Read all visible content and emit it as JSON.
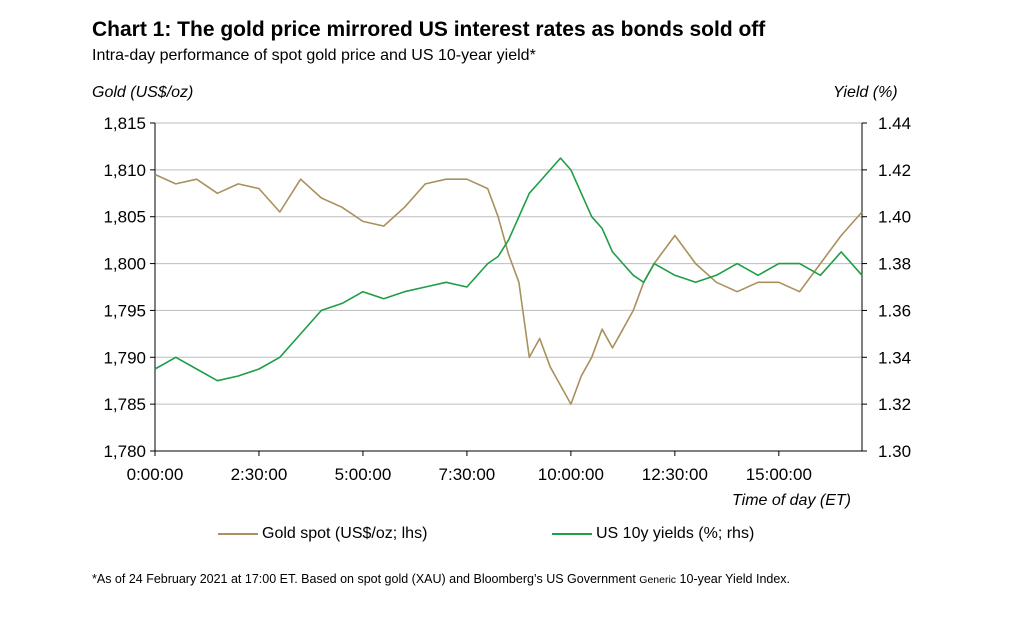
{
  "title": "Chart 1: The gold price mirrored US interest rates as bonds sold off",
  "subtitle": "Intra-day performance of spot gold price and US 10-year yield*",
  "footnote": {
    "part1": "*As of 24 February 2021 at 17:00 ET. Based on spot gold (XAU) and Bloomberg’s US Government ",
    "small": "Generic",
    "part2": " 10-year Yield Index."
  },
  "colors": {
    "gold": "#a8915c",
    "green": "#1e9e46",
    "grid": "#bdbdbd"
  },
  "chart_data": {
    "type": "line",
    "xlabel": "Time of day (ET)",
    "ylabel_left": "Gold (US$/oz)",
    "ylabel_right": "Yield (%)",
    "x_ticks": [
      "0:00:00",
      "2:30:00",
      "5:00:00",
      "7:30:00",
      "10:00:00",
      "12:30:00",
      "15:00:00"
    ],
    "x_range_hours": [
      0,
      17
    ],
    "ylim_left": [
      1780,
      1815
    ],
    "yticks_left": [
      "1,780",
      "1,785",
      "1,790",
      "1,795",
      "1,800",
      "1,805",
      "1,810",
      "1,815"
    ],
    "ylim_right": [
      1.3,
      1.44
    ],
    "yticks_right": [
      "1.30",
      "1.32",
      "1.34",
      "1.36",
      "1.38",
      "1.40",
      "1.42",
      "1.44"
    ],
    "grid": true,
    "legend_position": "bottom",
    "series": [
      {
        "name": "Gold spot (US$/oz; lhs)",
        "axis": "left",
        "x": [
          0,
          0.5,
          1,
          1.5,
          2,
          2.5,
          3,
          3.5,
          4,
          4.5,
          5,
          5.5,
          6,
          6.5,
          7,
          7.5,
          8,
          8.25,
          8.5,
          8.75,
          9,
          9.25,
          9.5,
          9.75,
          10,
          10.25,
          10.5,
          10.75,
          11,
          11.25,
          11.5,
          11.75,
          12,
          12.5,
          13,
          13.5,
          14,
          14.5,
          15,
          15.5,
          16,
          16.5,
          17
        ],
        "values": [
          1809.5,
          1808.5,
          1809,
          1807.5,
          1808.5,
          1808,
          1805.5,
          1809,
          1807,
          1806,
          1804.5,
          1804,
          1806,
          1808.5,
          1809,
          1809,
          1808,
          1805,
          1801,
          1798,
          1790,
          1792,
          1789,
          1787,
          1785,
          1788,
          1790,
          1793,
          1791,
          1793,
          1795,
          1798,
          1800,
          1803,
          1800,
          1798,
          1797,
          1798,
          1798,
          1797,
          1800,
          1803,
          1805.5
        ]
      },
      {
        "name": "US 10y yields (%; rhs)",
        "axis": "right",
        "x": [
          0,
          0.5,
          1,
          1.5,
          2,
          2.5,
          3,
          3.5,
          4,
          4.5,
          5,
          5.5,
          6,
          6.5,
          7,
          7.5,
          8,
          8.25,
          8.5,
          8.75,
          9,
          9.25,
          9.5,
          9.75,
          10,
          10.25,
          10.5,
          10.75,
          11,
          11.25,
          11.5,
          11.75,
          12,
          12.5,
          13,
          13.5,
          14,
          14.5,
          15,
          15.5,
          16,
          16.5,
          17
        ],
        "values": [
          1.335,
          1.34,
          1.335,
          1.33,
          1.332,
          1.335,
          1.34,
          1.35,
          1.36,
          1.363,
          1.368,
          1.365,
          1.368,
          1.37,
          1.372,
          1.37,
          1.38,
          1.383,
          1.39,
          1.4,
          1.41,
          1.415,
          1.42,
          1.425,
          1.42,
          1.41,
          1.4,
          1.395,
          1.385,
          1.38,
          1.375,
          1.372,
          1.38,
          1.375,
          1.372,
          1.375,
          1.38,
          1.375,
          1.38,
          1.38,
          1.375,
          1.385,
          1.375
        ]
      }
    ]
  }
}
